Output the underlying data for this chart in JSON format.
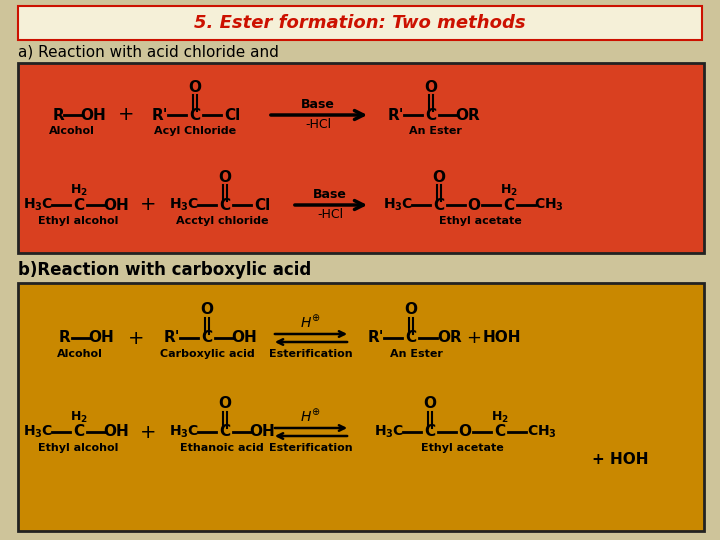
{
  "background_color": "#cec49a",
  "title": "5. Ester formation: Two methods",
  "title_color": "#cc1100",
  "title_bg": "#f5f0d8",
  "title_border": "#cc1100",
  "section_a_label": "a) Reaction with acid chloride and",
  "section_b_label": "b)Reaction with carboxylic acid",
  "section_a_bg": "#d94020",
  "section_b_bg": "#c98800",
  "box_border": "#222222"
}
